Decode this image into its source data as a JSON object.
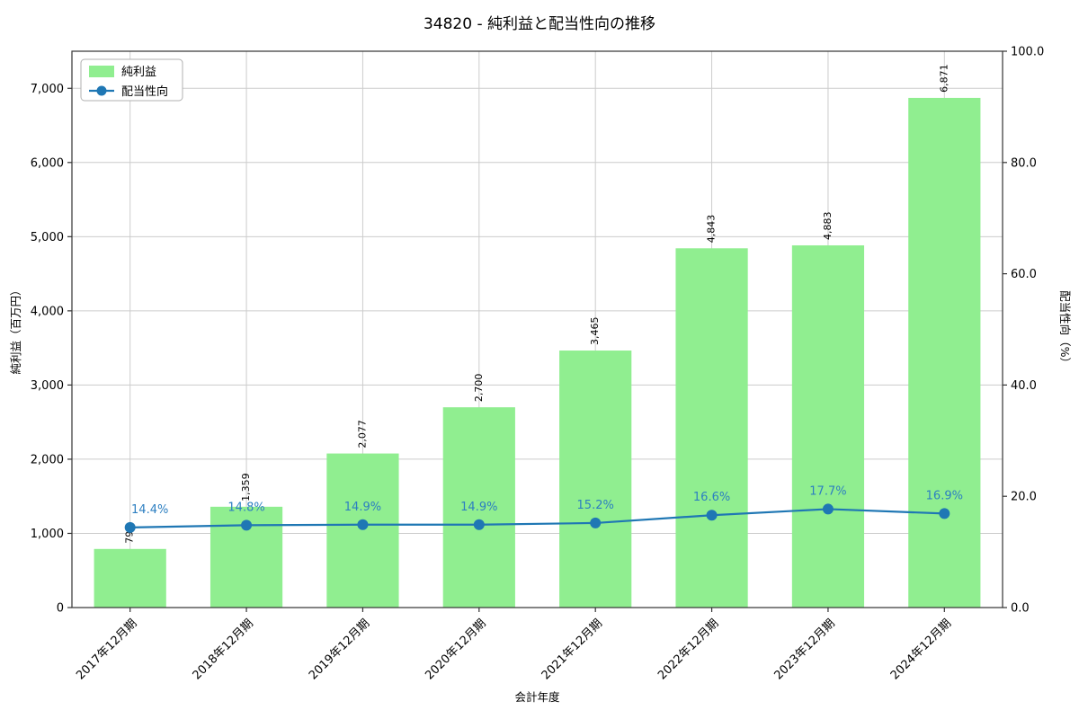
{
  "chart_data": {
    "type": "bar+line",
    "title": "34820 - 純利益と配当性向の推移",
    "xlabel": "会計年度",
    "ylabel_left": "純利益（百万円）",
    "ylabel_right": "配当性向（%）",
    "categories": [
      "2017年12月期",
      "2018年12月期",
      "2019年12月期",
      "2020年12月期",
      "2021年12月期",
      "2022年12月期",
      "2023年12月期",
      "2024年12月期"
    ],
    "series": [
      {
        "name": "純利益",
        "type": "bar",
        "axis": "left",
        "values": [
          790,
          1359,
          2077,
          2700,
          3465,
          4843,
          4883,
          6871
        ],
        "labels": [
          "790",
          "1,359",
          "2,077",
          "2,700",
          "3,465",
          "4,843",
          "4,883",
          "6,871"
        ],
        "color": "#90ee90"
      },
      {
        "name": "配当性向",
        "type": "line",
        "axis": "right",
        "values": [
          14.4,
          14.8,
          14.9,
          14.9,
          15.2,
          16.6,
          17.7,
          16.9
        ],
        "labels": [
          "14.4%",
          "14.8%",
          "14.9%",
          "14.9%",
          "15.2%",
          "16.6%",
          "17.7%",
          "16.9%"
        ],
        "color": "#1f77b4",
        "label_color": "#2d7fc1"
      }
    ],
    "left_axis": {
      "min": 0,
      "max": 7500,
      "ticks": [
        0,
        1000,
        2000,
        3000,
        4000,
        5000,
        6000,
        7000
      ],
      "tick_labels": [
        "0",
        "1,000",
        "2,000",
        "3,000",
        "4,000",
        "5,000",
        "6,000",
        "7,000"
      ]
    },
    "right_axis": {
      "min": 0,
      "max": 100,
      "ticks": [
        0,
        20,
        40,
        60,
        80,
        100
      ],
      "tick_labels": [
        "0.0",
        "20.0",
        "40.0",
        "60.0",
        "80.0",
        "100.0"
      ]
    },
    "grid": true,
    "legend": {
      "position": "upper-left",
      "items": [
        "純利益",
        "配当性向"
      ]
    },
    "colors": {
      "grid": "#cccccc",
      "spine": "#333333",
      "background": "#ffffff",
      "text": "#000000"
    }
  }
}
